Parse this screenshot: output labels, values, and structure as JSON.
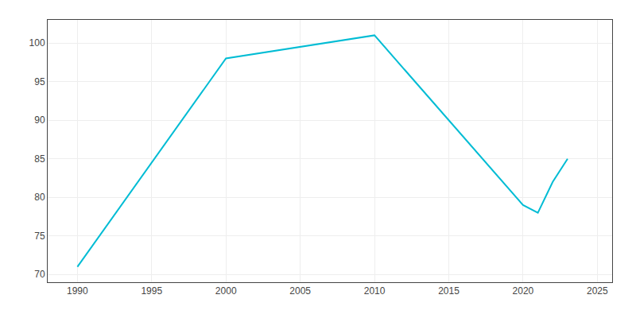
{
  "chart_data": {
    "type": "line",
    "x": [
      1990,
      2000,
      2010,
      2020,
      2021,
      2022,
      2023
    ],
    "values": [
      71,
      98,
      101,
      79,
      78,
      82,
      85
    ],
    "color": "#00BCD4",
    "xlim": [
      1988,
      2026
    ],
    "ylim": [
      69,
      103
    ],
    "xticks": [
      1990,
      1995,
      2000,
      2005,
      2010,
      2015,
      2020,
      2025
    ],
    "yticks": [
      70,
      75,
      80,
      85,
      90,
      95,
      100
    ],
    "grid": true
  }
}
